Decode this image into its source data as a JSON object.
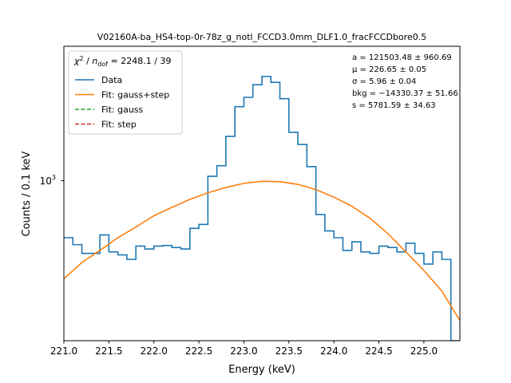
{
  "chart_data": {
    "type": "line",
    "title": "V02160A-ba_HS4-top-0r-78z_g_notl_FCCD3.0mm_DLF1.0_fracFCCDbore0.5",
    "xlabel": "Energy (keV)",
    "ylabel": "Counts / 0.1 keV",
    "xlim": [
      221.0,
      225.4
    ],
    "ylim": [
      400,
      1900
    ],
    "y_scale": "log",
    "x_ticks": [
      "221.0",
      "221.5",
      "222.0",
      "222.5",
      "223.0",
      "223.5",
      "224.0",
      "224.5",
      "225.0"
    ],
    "x_tick_values": [
      221.0,
      221.5,
      222.0,
      222.5,
      223.0,
      223.5,
      224.0,
      224.5,
      225.0
    ],
    "y_tick_base": "10",
    "y_tick_exp": "3",
    "y_tick_value": 1000,
    "legend_position": "top-left",
    "legend_header": {
      "chi": "χ",
      "sq": "2",
      "mid": " / ",
      "n": "n",
      "ndof": "dof",
      "rest": " = 2248.1 / 39"
    },
    "legend": [
      {
        "name": "Data",
        "color": "#1f77b4",
        "dash": false
      },
      {
        "name": "Fit: gauss+step",
        "color": "#ff7f0e",
        "dash": false
      },
      {
        "name": "Fit: gauss",
        "color": "#2ca02c",
        "dash": true
      },
      {
        "name": "Fit: step",
        "color": "#d62728",
        "dash": true
      }
    ],
    "annotations": [
      "a = 121503.48 ± 960.69",
      "μ = 226.65 ± 0.05",
      "σ = 5.96 ± 0.04",
      "bkg = −14330.37 ± 51.66",
      "s = 5781.59 ± 34.63"
    ],
    "series": [
      {
        "name": "Data",
        "kind": "step",
        "color": "#1f77b4",
        "bin_edges": [
          221.0,
          221.1,
          221.2,
          221.3,
          221.4,
          221.5,
          221.6,
          221.7,
          221.8,
          221.9,
          222.0,
          222.1,
          222.2,
          222.3,
          222.4,
          222.5,
          222.6,
          222.7,
          222.8,
          222.9,
          223.0,
          223.1,
          223.2,
          223.3,
          223.4,
          223.5,
          223.6,
          223.7,
          223.8,
          223.9,
          224.0,
          224.1,
          224.2,
          224.3,
          224.4,
          224.5,
          224.6,
          224.7,
          224.8,
          224.9,
          225.0,
          225.1,
          225.2,
          225.3,
          225.4
        ],
        "values": [
          690,
          665,
          635,
          635,
          700,
          640,
          630,
          615,
          660,
          650,
          660,
          662,
          655,
          650,
          725,
          740,
          955,
          1010,
          1180,
          1380,
          1450,
          1550,
          1620,
          1570,
          1440,
          1205,
          1130,
          1005,
          780,
          715,
          690,
          645,
          675,
          640,
          635,
          660,
          655,
          640,
          670,
          635,
          600,
          640,
          615,
          400
        ]
      },
      {
        "name": "Fit: gauss+step",
        "kind": "curve",
        "color": "#ff7f0e",
        "x": [
          221.0,
          221.2,
          221.4,
          221.6,
          221.8,
          222.0,
          222.2,
          222.4,
          222.6,
          222.8,
          223.0,
          223.2,
          223.4,
          223.6,
          223.8,
          224.0,
          224.2,
          224.4,
          224.6,
          224.8,
          225.0,
          225.2,
          225.4
        ],
        "values": [
          555,
          605,
          645,
          690,
          730,
          775,
          810,
          845,
          875,
          900,
          920,
          930,
          928,
          915,
          890,
          855,
          815,
          765,
          705,
          640,
          580,
          520,
          445
        ]
      }
    ]
  }
}
